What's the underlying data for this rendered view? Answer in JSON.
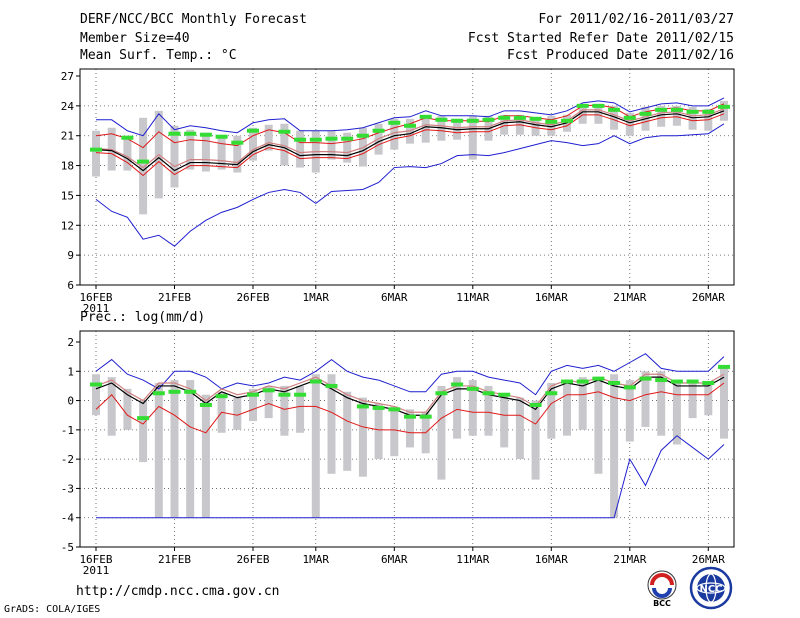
{
  "header": {
    "title": "DERF/NCC/BCC Monthly Forecast",
    "member_size": "Member Size=40",
    "variable": "Mean Surf. Temp.: °C",
    "period": "For 2011/02/16-2011/03/27",
    "refer_date": "Fcst Started Refer Date 2011/02/15",
    "produced_date": "Fcst Produced Date 2011/02/16"
  },
  "footer": {
    "url": "http://cmdp.ncc.cma.gov.cn",
    "credit": "GrADS: COLA/IGES",
    "logo_left_text": "BCC",
    "logo_right_text": "NCC"
  },
  "colors": {
    "max_line": "#1f1fd0",
    "min_line": "#1f1fd0",
    "upper_line": "#e01818",
    "mean_line": "#000000",
    "ensemble_mean_line": "#d08080",
    "box": "#c8c8cc",
    "median_mark": "#33dd33",
    "grid": "#555555"
  },
  "chart_data": [
    {
      "type": "line",
      "title": "Mean Surf. Temp.: °C",
      "x_tick_labels": [
        "16FEB",
        "21FEB",
        "26FEB",
        "1MAR",
        "6MAR",
        "11MAR",
        "16MAR",
        "21MAR",
        "26MAR"
      ],
      "x_tick_days": [
        0,
        5,
        10,
        14,
        19,
        24,
        29,
        34,
        39
      ],
      "year_label": "2011",
      "ylim": [
        6,
        27
      ],
      "y_ticks": [
        6,
        9,
        12,
        15,
        18,
        21,
        24,
        27
      ],
      "series": [
        {
          "name": "max",
          "values": [
            22.6,
            22.6,
            21.5,
            21.0,
            23.2,
            21.6,
            22.0,
            21.8,
            21.5,
            21.3,
            22.3,
            22.6,
            22.7,
            21.5,
            21.5,
            21.5,
            21.6,
            21.8,
            22.3,
            22.8,
            22.9,
            23.5,
            23.0,
            23.0,
            23.0,
            22.9,
            23.5,
            23.5,
            23.3,
            23.1,
            23.5,
            24.3,
            24.5,
            24.3,
            23.4,
            23.8,
            24.2,
            24.3,
            24.0,
            24.0,
            24.8
          ]
        },
        {
          "name": "upper",
          "values": [
            21.0,
            21.2,
            20.7,
            19.8,
            21.4,
            20.3,
            20.6,
            20.5,
            20.2,
            20.0,
            21.0,
            21.6,
            21.3,
            20.3,
            20.3,
            20.2,
            20.4,
            20.7,
            21.3,
            21.8,
            22.2,
            22.8,
            22.5,
            22.5,
            22.5,
            22.4,
            23.0,
            23.0,
            22.8,
            22.6,
            23.0,
            24.0,
            24.1,
            23.8,
            22.9,
            23.4,
            23.7,
            23.8,
            23.5,
            23.5,
            24.2
          ]
        },
        {
          "name": "ensemble_mean",
          "values": [
            19.7,
            19.6,
            18.9,
            17.8,
            19.1,
            17.9,
            18.6,
            18.6,
            18.5,
            18.3,
            19.6,
            20.3,
            20.0,
            19.3,
            19.4,
            19.4,
            19.3,
            19.8,
            20.7,
            21.3,
            21.5,
            22.1,
            22.0,
            21.8,
            21.9,
            21.9,
            22.5,
            22.6,
            22.3,
            22.1,
            22.5,
            23.6,
            23.6,
            23.1,
            22.5,
            22.9,
            23.3,
            23.4,
            23.0,
            23.1,
            23.7
          ]
        },
        {
          "name": "mean",
          "values": [
            19.6,
            19.5,
            18.7,
            17.5,
            18.8,
            17.5,
            18.3,
            18.3,
            18.2,
            18.1,
            19.4,
            20.1,
            19.8,
            19.0,
            19.1,
            19.1,
            19.0,
            19.5,
            20.4,
            21.0,
            21.2,
            21.9,
            21.8,
            21.6,
            21.7,
            21.7,
            22.3,
            22.4,
            22.1,
            21.9,
            22.3,
            23.4,
            23.4,
            22.9,
            22.3,
            22.7,
            23.1,
            23.2,
            22.8,
            22.9,
            23.5
          ]
        },
        {
          "name": "lower",
          "values": [
            19.3,
            19.2,
            18.3,
            17.0,
            18.4,
            17.1,
            18.0,
            18.0,
            17.9,
            17.8,
            19.1,
            19.8,
            19.5,
            18.7,
            18.8,
            18.8,
            18.7,
            19.2,
            20.1,
            20.7,
            21.0,
            21.6,
            21.5,
            21.3,
            21.4,
            21.4,
            22.0,
            22.1,
            21.8,
            21.6,
            22.0,
            23.1,
            23.1,
            22.6,
            22.0,
            22.4,
            22.8,
            22.9,
            22.5,
            22.6,
            23.2
          ]
        },
        {
          "name": "min",
          "values": [
            14.6,
            13.4,
            12.8,
            10.6,
            11.0,
            9.9,
            11.4,
            12.5,
            13.3,
            13.8,
            14.6,
            15.3,
            15.6,
            15.3,
            14.2,
            15.4,
            15.5,
            15.6,
            16.3,
            17.8,
            17.9,
            17.8,
            18.2,
            19.0,
            19.1,
            19.0,
            19.3,
            19.7,
            20.1,
            20.5,
            20.3,
            20.0,
            20.2,
            21.0,
            20.2,
            20.8,
            21.0,
            21.0,
            21.1,
            21.2,
            22.2
          ]
        }
      ],
      "boxes": {
        "low": [
          16.9,
          17.5,
          17.5,
          13.1,
          14.7,
          15.8,
          17.6,
          17.4,
          17.6,
          17.3,
          18.5,
          19.5,
          18.0,
          17.8,
          17.3,
          18.6,
          18.3,
          17.9,
          19.1,
          19.6,
          20.2,
          20.3,
          20.5,
          20.6,
          18.6,
          20.5,
          21.1,
          21.1,
          21.0,
          21.0,
          21.4,
          22.2,
          22.2,
          21.6,
          21.0,
          21.5,
          21.9,
          22.0,
          21.6,
          21.5,
          22.5
        ],
        "high": [
          21.5,
          21.8,
          21.0,
          22.8,
          23.5,
          22.0,
          21.6,
          21.3,
          20.9,
          21.0,
          21.8,
          22.1,
          22.2,
          21.5,
          21.5,
          21.5,
          21.3,
          21.8,
          22.2,
          22.7,
          22.7,
          23.0,
          23.0,
          22.7,
          23.0,
          23.0,
          23.1,
          23.1,
          22.8,
          23.0,
          23.1,
          24.0,
          24.2,
          24.0,
          23.3,
          23.9,
          24.0,
          24.0,
          23.9,
          23.7,
          24.5
        ],
        "median": [
          19.6,
          null,
          20.8,
          18.4,
          null,
          21.2,
          21.2,
          21.1,
          20.9,
          20.3,
          21.5,
          null,
          21.4,
          20.6,
          20.6,
          20.7,
          20.7,
          21.0,
          21.5,
          22.3,
          22.0,
          22.9,
          22.6,
          22.5,
          22.5,
          22.6,
          22.8,
          22.8,
          22.7,
          22.4,
          22.5,
          24.0,
          24.0,
          23.6,
          22.8,
          23.2,
          23.6,
          23.6,
          23.4,
          23.4,
          23.9
        ]
      }
    },
    {
      "type": "line",
      "title": "Prec.: log(mm/d)",
      "x_tick_labels": [
        "16FEB",
        "21FEB",
        "26FEB",
        "1MAR",
        "6MAR",
        "11MAR",
        "16MAR",
        "21MAR",
        "26MAR"
      ],
      "x_tick_days": [
        0,
        5,
        10,
        14,
        19,
        24,
        29,
        34,
        39
      ],
      "year_label": "2011",
      "ylim": [
        -5,
        2
      ],
      "y_ticks": [
        -5,
        -4,
        -3,
        -2,
        -1,
        0,
        1,
        2
      ],
      "series": [
        {
          "name": "max",
          "values": [
            1.0,
            1.4,
            0.9,
            0.7,
            0.4,
            1.0,
            1.0,
            0.8,
            0.4,
            0.6,
            0.5,
            0.6,
            0.8,
            0.7,
            1.0,
            1.4,
            1.0,
            0.8,
            0.7,
            0.5,
            0.3,
            0.3,
            0.9,
            1.0,
            1.0,
            0.8,
            0.7,
            0.6,
            0.2,
            1.0,
            1.2,
            1.1,
            1.2,
            1.0,
            1.3,
            1.6,
            1.1,
            1.0,
            1.0,
            1.0,
            1.5
          ]
        },
        {
          "name": "ensemble_mean",
          "values": [
            0.5,
            0.7,
            0.3,
            0.0,
            0.6,
            0.6,
            0.4,
            0.0,
            0.4,
            0.2,
            0.3,
            0.5,
            0.4,
            0.6,
            0.8,
            0.5,
            0.2,
            0.0,
            -0.1,
            -0.2,
            -0.4,
            -0.4,
            0.3,
            0.5,
            0.5,
            0.3,
            0.2,
            0.1,
            -0.2,
            0.5,
            0.7,
            0.6,
            0.8,
            0.6,
            0.5,
            0.9,
            0.9,
            0.6,
            0.6,
            0.6,
            0.9
          ]
        },
        {
          "name": "mean",
          "values": [
            0.4,
            0.6,
            0.2,
            -0.1,
            0.5,
            0.5,
            0.3,
            -0.1,
            0.3,
            0.1,
            0.2,
            0.4,
            0.3,
            0.5,
            0.7,
            0.4,
            0.1,
            -0.1,
            -0.2,
            -0.3,
            -0.5,
            -0.5,
            0.2,
            0.4,
            0.4,
            0.2,
            0.1,
            0.0,
            -0.3,
            0.4,
            0.6,
            0.5,
            0.7,
            0.5,
            0.4,
            0.8,
            0.8,
            0.5,
            0.5,
            0.5,
            0.8
          ]
        },
        {
          "name": "lower",
          "values": [
            -0.3,
            0.2,
            -0.5,
            -0.8,
            -0.2,
            -0.5,
            -0.9,
            -1.1,
            -0.4,
            -0.5,
            -0.3,
            -0.1,
            -0.3,
            -0.2,
            -0.2,
            -0.4,
            -0.7,
            -0.9,
            -1.0,
            -1.0,
            -1.1,
            -1.1,
            -0.6,
            -0.3,
            -0.4,
            -0.4,
            -0.5,
            -0.5,
            -0.8,
            -0.1,
            0.2,
            0.2,
            0.3,
            0.1,
            0.0,
            0.2,
            0.3,
            0.2,
            0.2,
            0.2,
            0.6
          ]
        },
        {
          "name": "min",
          "values": [
            -4,
            -4,
            -4,
            -4,
            -4,
            -4,
            -4,
            -4,
            -4,
            -4,
            -4,
            -4,
            -4,
            -4,
            -4,
            -4,
            -4,
            -4,
            -4,
            -4,
            -4,
            -4,
            -4,
            -4,
            -4,
            -4,
            -4,
            -4,
            -4,
            -4,
            -4,
            -4,
            -4,
            -4,
            -2.0,
            -2.9,
            -1.7,
            -1.2,
            -1.6,
            -2.0,
            -1.5
          ]
        }
      ],
      "boxes": {
        "low": [
          -0.5,
          -1.2,
          -1.0,
          -2.1,
          -4,
          -4,
          -4,
          -4,
          -1.1,
          -1.0,
          -0.7,
          -0.6,
          -1.2,
          -1.1,
          -4,
          -2.5,
          -2.4,
          -2.6,
          -2.0,
          -1.9,
          -1.6,
          -1.8,
          -2.7,
          -1.3,
          -1.2,
          -1.2,
          -1.6,
          -2.0,
          -2.7,
          -1.3,
          -1.2,
          -1.0,
          -2.5,
          -4,
          -1.4,
          -0.9,
          -1.2,
          -1.5,
          -0.6,
          -0.5,
          -1.3
        ],
        "high": [
          0.9,
          0.8,
          0.4,
          0.0,
          0.6,
          0.7,
          0.7,
          0.2,
          0.3,
          0.1,
          0.4,
          0.5,
          0.5,
          0.5,
          0.9,
          0.9,
          0.3,
          0.1,
          -0.1,
          -0.2,
          -0.3,
          -0.4,
          0.5,
          0.8,
          0.7,
          0.5,
          0.2,
          0.1,
          0.0,
          0.6,
          0.7,
          0.8,
          0.8,
          0.9,
          0.7,
          1.0,
          1.0,
          0.7,
          0.6,
          0.6,
          1.2
        ],
        "median": [
          0.55,
          null,
          null,
          -0.6,
          0.25,
          0.3,
          0.3,
          -0.15,
          0.15,
          null,
          0.2,
          0.35,
          0.2,
          0.2,
          0.65,
          0.5,
          null,
          -0.2,
          -0.25,
          -0.3,
          -0.55,
          -0.55,
          0.25,
          0.55,
          0.4,
          0.25,
          0.2,
          null,
          -0.15,
          0.25,
          0.65,
          0.65,
          0.75,
          0.6,
          0.45,
          0.75,
          0.7,
          0.65,
          0.65,
          0.6,
          1.15
        ]
      }
    }
  ]
}
